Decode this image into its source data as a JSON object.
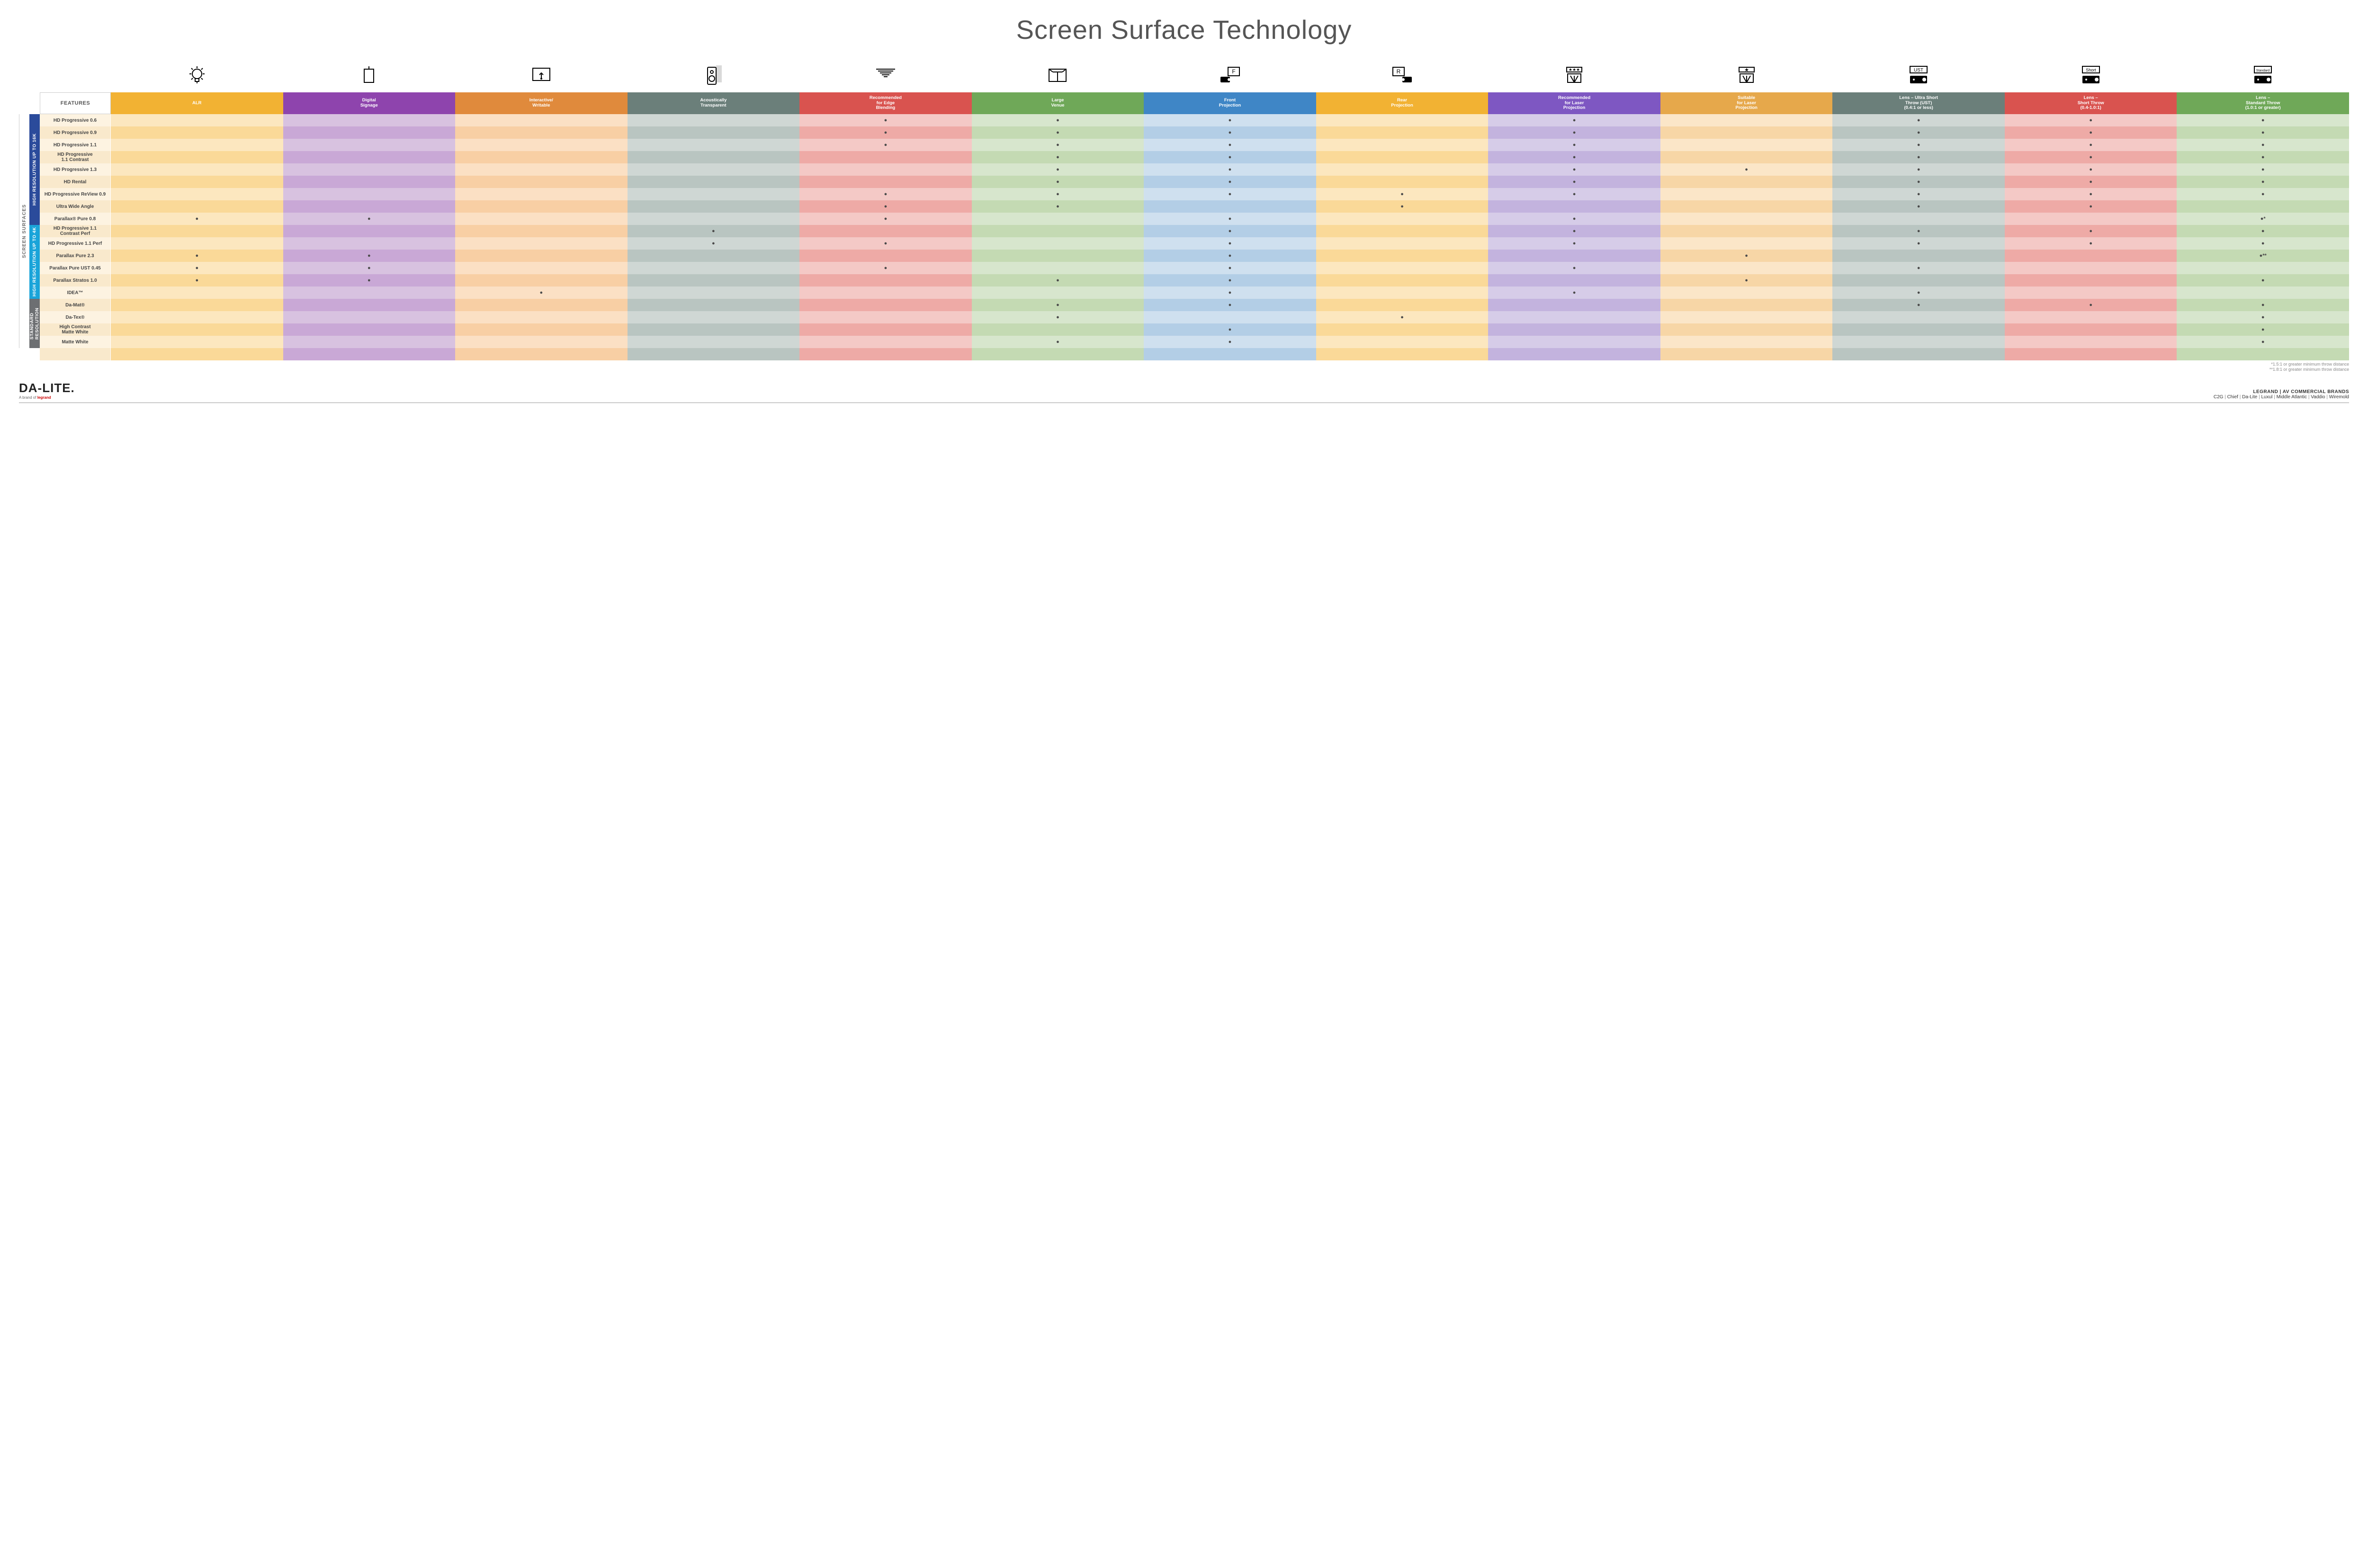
{
  "title": "Screen Surface Technology",
  "features_header": "FEATURES",
  "side_label_outer": "SCREEN SURFACES",
  "columns": [
    {
      "label": "ALR",
      "color": "#f2b233",
      "icon": "bulb"
    },
    {
      "label": "Digital\nSignage",
      "color": "#8e44ad",
      "icon": "signage"
    },
    {
      "label": "Interactive/\nWritable",
      "color": "#e08a3c",
      "icon": "touch"
    },
    {
      "label": "Acoustically\nTransparent",
      "color": "#6b7f7a",
      "icon": "speaker"
    },
    {
      "label": "Recommended\nfor Edge\nBlending",
      "color": "#d9534f",
      "icon": "blend"
    },
    {
      "label": "Large\nVenue",
      "color": "#6fa858",
      "icon": "venue"
    },
    {
      "label": "Front\nProjection",
      "color": "#3f86c6",
      "icon": "front"
    },
    {
      "label": "Rear\nProjection",
      "color": "#f2b233",
      "icon": "rear"
    },
    {
      "label": "Recommended\nfor Laser\nProjection",
      "color": "#7e57c2",
      "icon": "laser-rec"
    },
    {
      "label": "Suitable\nfor Laser\nProjection",
      "color": "#e6a84b",
      "icon": "laser-suit"
    },
    {
      "label": "Lens – Ultra Short\nThrow (UST)\n(0.4:1 or less)",
      "color": "#6b7f7a",
      "icon": "ust"
    },
    {
      "label": "Lens –\nShort Throw\n(0.4-1.0:1)",
      "color": "#d9534f",
      "icon": "short"
    },
    {
      "label": "Lens –\nStandard Throw\n(1.0:1 or greater)",
      "color": "#6fa858",
      "icon": "standard"
    }
  ],
  "column_tints": {
    "label_even": "#fdf3e1",
    "label_odd": "#f9e9cc",
    "cols": [
      [
        "#fce7bf",
        "#fad998"
      ],
      [
        "#d8c2e0",
        "#c9a8d6"
      ],
      [
        "#fbe0c4",
        "#f8cfa4"
      ],
      [
        "#cfd7d4",
        "#b9c5c1"
      ],
      [
        "#f4c9c6",
        "#eeaaa6"
      ],
      [
        "#d7e6cd",
        "#c4dab3"
      ],
      [
        "#cfe0ef",
        "#b3cee6"
      ],
      [
        "#fce7bf",
        "#fad998"
      ],
      [
        "#d6cce8",
        "#c3b3de"
      ],
      [
        "#fbe6c8",
        "#f7d6a6"
      ],
      [
        "#cfd7d4",
        "#b9c5c1"
      ],
      [
        "#f4c9c6",
        "#eeaaa6"
      ],
      [
        "#d7e6cd",
        "#c4dab3"
      ]
    ]
  },
  "groups": [
    {
      "label": "HIGH RESOLUTION UP TO 16K",
      "color": "#2b4b9b",
      "rows": [
        {
          "name": "HD Progressive 0.6",
          "marks": [
            "",
            "",
            "",
            "",
            "●",
            "●",
            "●",
            "",
            "●",
            "",
            "●",
            "●",
            "●"
          ]
        },
        {
          "name": "HD Progressive 0.9",
          "marks": [
            "",
            "",
            "",
            "",
            "●",
            "●",
            "●",
            "",
            "●",
            "",
            "●",
            "●",
            "●"
          ]
        },
        {
          "name": "HD Progressive 1.1",
          "marks": [
            "",
            "",
            "",
            "",
            "●",
            "●",
            "●",
            "",
            "●",
            "",
            "●",
            "●",
            "●"
          ]
        },
        {
          "name": "HD Progressive\n1.1 Contrast",
          "marks": [
            "",
            "",
            "",
            "",
            "",
            "●",
            "●",
            "",
            "●",
            "",
            "●",
            "●",
            "●"
          ]
        },
        {
          "name": "HD Progressive 1.3",
          "marks": [
            "",
            "",
            "",
            "",
            "",
            "●",
            "●",
            "",
            "●",
            "●",
            "●",
            "●",
            "●"
          ]
        },
        {
          "name": "HD Rental",
          "marks": [
            "",
            "",
            "",
            "",
            "",
            "●",
            "●",
            "",
            "●",
            "",
            "●",
            "●",
            "●"
          ]
        },
        {
          "name": "HD Progressive ReView 0.9",
          "marks": [
            "",
            "",
            "",
            "",
            "●",
            "●",
            "●",
            "●",
            "●",
            "",
            "●",
            "●",
            "●"
          ]
        },
        {
          "name": "Ultra Wide Angle",
          "marks": [
            "",
            "",
            "",
            "",
            "●",
            "●",
            "",
            "●",
            "",
            "",
            "●",
            "●",
            ""
          ]
        },
        {
          "name": "Parallax® Pure 0.8",
          "marks": [
            "●",
            "●",
            "",
            "",
            "●",
            "",
            "●",
            "",
            "●",
            "",
            "",
            "",
            "●*"
          ]
        }
      ]
    },
    {
      "label": "HIGH RESOLUTION UP TO 4K",
      "color": "#1aa4d9",
      "rows": [
        {
          "name": "HD Progressive 1.1\nContrast Perf",
          "marks": [
            "",
            "",
            "",
            "●",
            "",
            "",
            "●",
            "",
            "●",
            "",
            "●",
            "●",
            "●"
          ]
        },
        {
          "name": "HD Progressive 1.1 Perf",
          "marks": [
            "",
            "",
            "",
            "●",
            "●",
            "",
            "●",
            "",
            "●",
            "",
            "●",
            "●",
            "●"
          ]
        },
        {
          "name": "Parallax Pure 2.3",
          "marks": [
            "●",
            "●",
            "",
            "",
            "",
            "",
            "●",
            "",
            "",
            "●",
            "",
            "",
            "●**"
          ]
        },
        {
          "name": "Parallax Pure UST 0.45",
          "marks": [
            "●",
            "●",
            "",
            "",
            "●",
            "",
            "●",
            "",
            "●",
            "",
            "●",
            "",
            ""
          ]
        },
        {
          "name": "Parallax Stratos 1.0",
          "marks": [
            "●",
            "●",
            "",
            "",
            "",
            "●",
            "●",
            "",
            "",
            "●",
            "",
            "",
            "●"
          ]
        },
        {
          "name": "IDEA™",
          "marks": [
            "",
            "",
            "●",
            "",
            "",
            "",
            "●",
            "",
            "●",
            "",
            "●",
            "",
            ""
          ]
        }
      ]
    },
    {
      "label": "STANDARD\nRESOLUTION",
      "color": "#6d6f72",
      "rows": [
        {
          "name": "Da-Mat®",
          "marks": [
            "",
            "",
            "",
            "",
            "",
            "●",
            "●",
            "",
            "",
            "",
            "●",
            "●",
            "●"
          ]
        },
        {
          "name": "Da-Tex®",
          "marks": [
            "",
            "",
            "",
            "",
            "",
            "●",
            "",
            "●",
            "",
            "",
            "",
            "",
            "●"
          ]
        },
        {
          "name": "High Contrast\nMatte White",
          "marks": [
            "",
            "",
            "",
            "",
            "",
            "",
            "●",
            "",
            "",
            "",
            "",
            "",
            "●"
          ]
        },
        {
          "name": "Matte White",
          "marks": [
            "",
            "",
            "",
            "",
            "",
            "●",
            "●",
            "",
            "",
            "",
            "",
            "",
            "●"
          ]
        }
      ]
    }
  ],
  "footnotes": [
    "*1.5:1 or greater minimum throw distance",
    "**1.8:1 or greater minimum throw distance"
  ],
  "footer": {
    "logo": "DA-LITE.",
    "logo_sub_prefix": "A brand of ",
    "logo_sub_brand": "legrand",
    "brands_title": "LEGRAND | AV COMMERCIAL BRANDS",
    "brands": [
      "C2G",
      "Chief",
      "Da-Lite",
      "Luxul",
      "Middle Atlantic",
      "Vaddio",
      "Wiremold"
    ]
  }
}
